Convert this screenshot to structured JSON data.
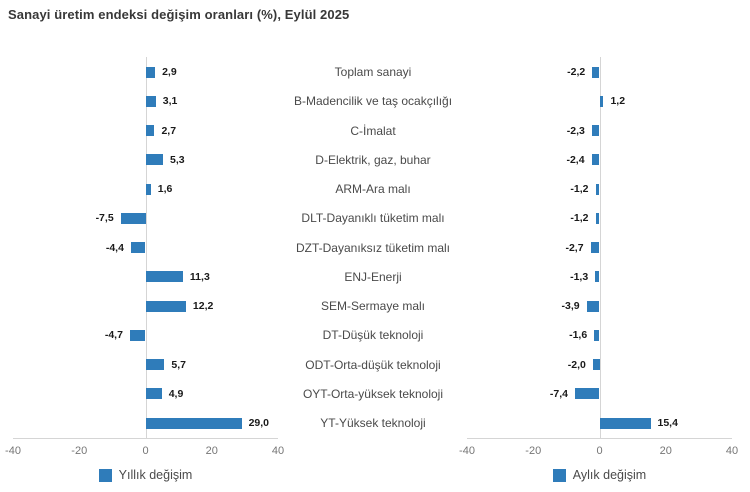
{
  "title": "Sanayi üretim endeksi değişim oranları (%), Eylül 2025",
  "colors": {
    "bar": "#2f7cba",
    "axis_line": "#d5d5d5",
    "tick_label": "#767676",
    "value_label": "#1a1a1a",
    "category_label": "#4a4a4a",
    "title": "#383838"
  },
  "chart_data": [
    {
      "type": "bar",
      "orientation": "horizontal",
      "legend": "Yıllık değişim",
      "categories": [
        "Toplam sanayi",
        "B-Madencilik ve taş ocakçılığı",
        "C-İmalat",
        "D-Elektrik, gaz, buhar",
        "ARM-Ara malı",
        "DLT-Dayanıklı tüketim malı",
        "DZT-Dayanıksız tüketim malı",
        "ENJ-Enerji",
        "SEM-Sermaye malı",
        "DT-Düşük teknoloji",
        "ODT-Orta-düşük teknoloji",
        "OYT-Orta-yüksek teknoloji",
        "YT-Yüksek teknoloji"
      ],
      "values": [
        2.9,
        3.1,
        2.7,
        5.3,
        1.6,
        -7.5,
        -4.4,
        11.3,
        12.2,
        -4.7,
        5.7,
        4.9,
        29.0
      ],
      "value_labels": [
        "2,9",
        "3,1",
        "2,7",
        "5,3",
        "1,6",
        "-7,5",
        "-4,4",
        "11,3",
        "12,2",
        "-4,7",
        "5,7",
        "4,9",
        "29,0"
      ],
      "xlim": [
        -40,
        40
      ],
      "xticks": [
        -40,
        -20,
        0,
        20,
        40
      ],
      "xtick_labels": [
        "-40",
        "-20",
        "0",
        "20",
        "40"
      ],
      "grid": "zero-line-only",
      "legend_position": "bottom-center"
    },
    {
      "type": "bar",
      "orientation": "horizontal",
      "legend": "Aylık değişim",
      "categories": [
        "Toplam sanayi",
        "B-Madencilik ve taş ocakçılığı",
        "C-İmalat",
        "D-Elektrik, gaz, buhar",
        "ARM-Ara malı",
        "DLT-Dayanıklı tüketim malı",
        "DZT-Dayanıksız tüketim malı",
        "ENJ-Enerji",
        "SEM-Sermaye malı",
        "DT-Düşük teknoloji",
        "ODT-Orta-düşük teknoloji",
        "OYT-Orta-yüksek teknoloji",
        "YT-Yüksek teknoloji"
      ],
      "values": [
        -2.2,
        1.2,
        -2.3,
        -2.4,
        -1.2,
        -1.2,
        -2.7,
        -1.3,
        -3.9,
        -1.6,
        -2.0,
        -7.4,
        15.4
      ],
      "value_labels": [
        "-2,2",
        "1,2",
        "-2,3",
        "-2,4",
        "-1,2",
        "-1,2",
        "-2,7",
        "-1,3",
        "-3,9",
        "-1,6",
        "-2,0",
        "-7,4",
        "15,4"
      ],
      "xlim": [
        -40,
        40
      ],
      "xticks": [
        -40,
        -20,
        0,
        20,
        40
      ],
      "xtick_labels": [
        "-40",
        "-20",
        "0",
        "20",
        "40"
      ],
      "grid": "zero-line-only",
      "legend_position": "bottom-center"
    }
  ]
}
